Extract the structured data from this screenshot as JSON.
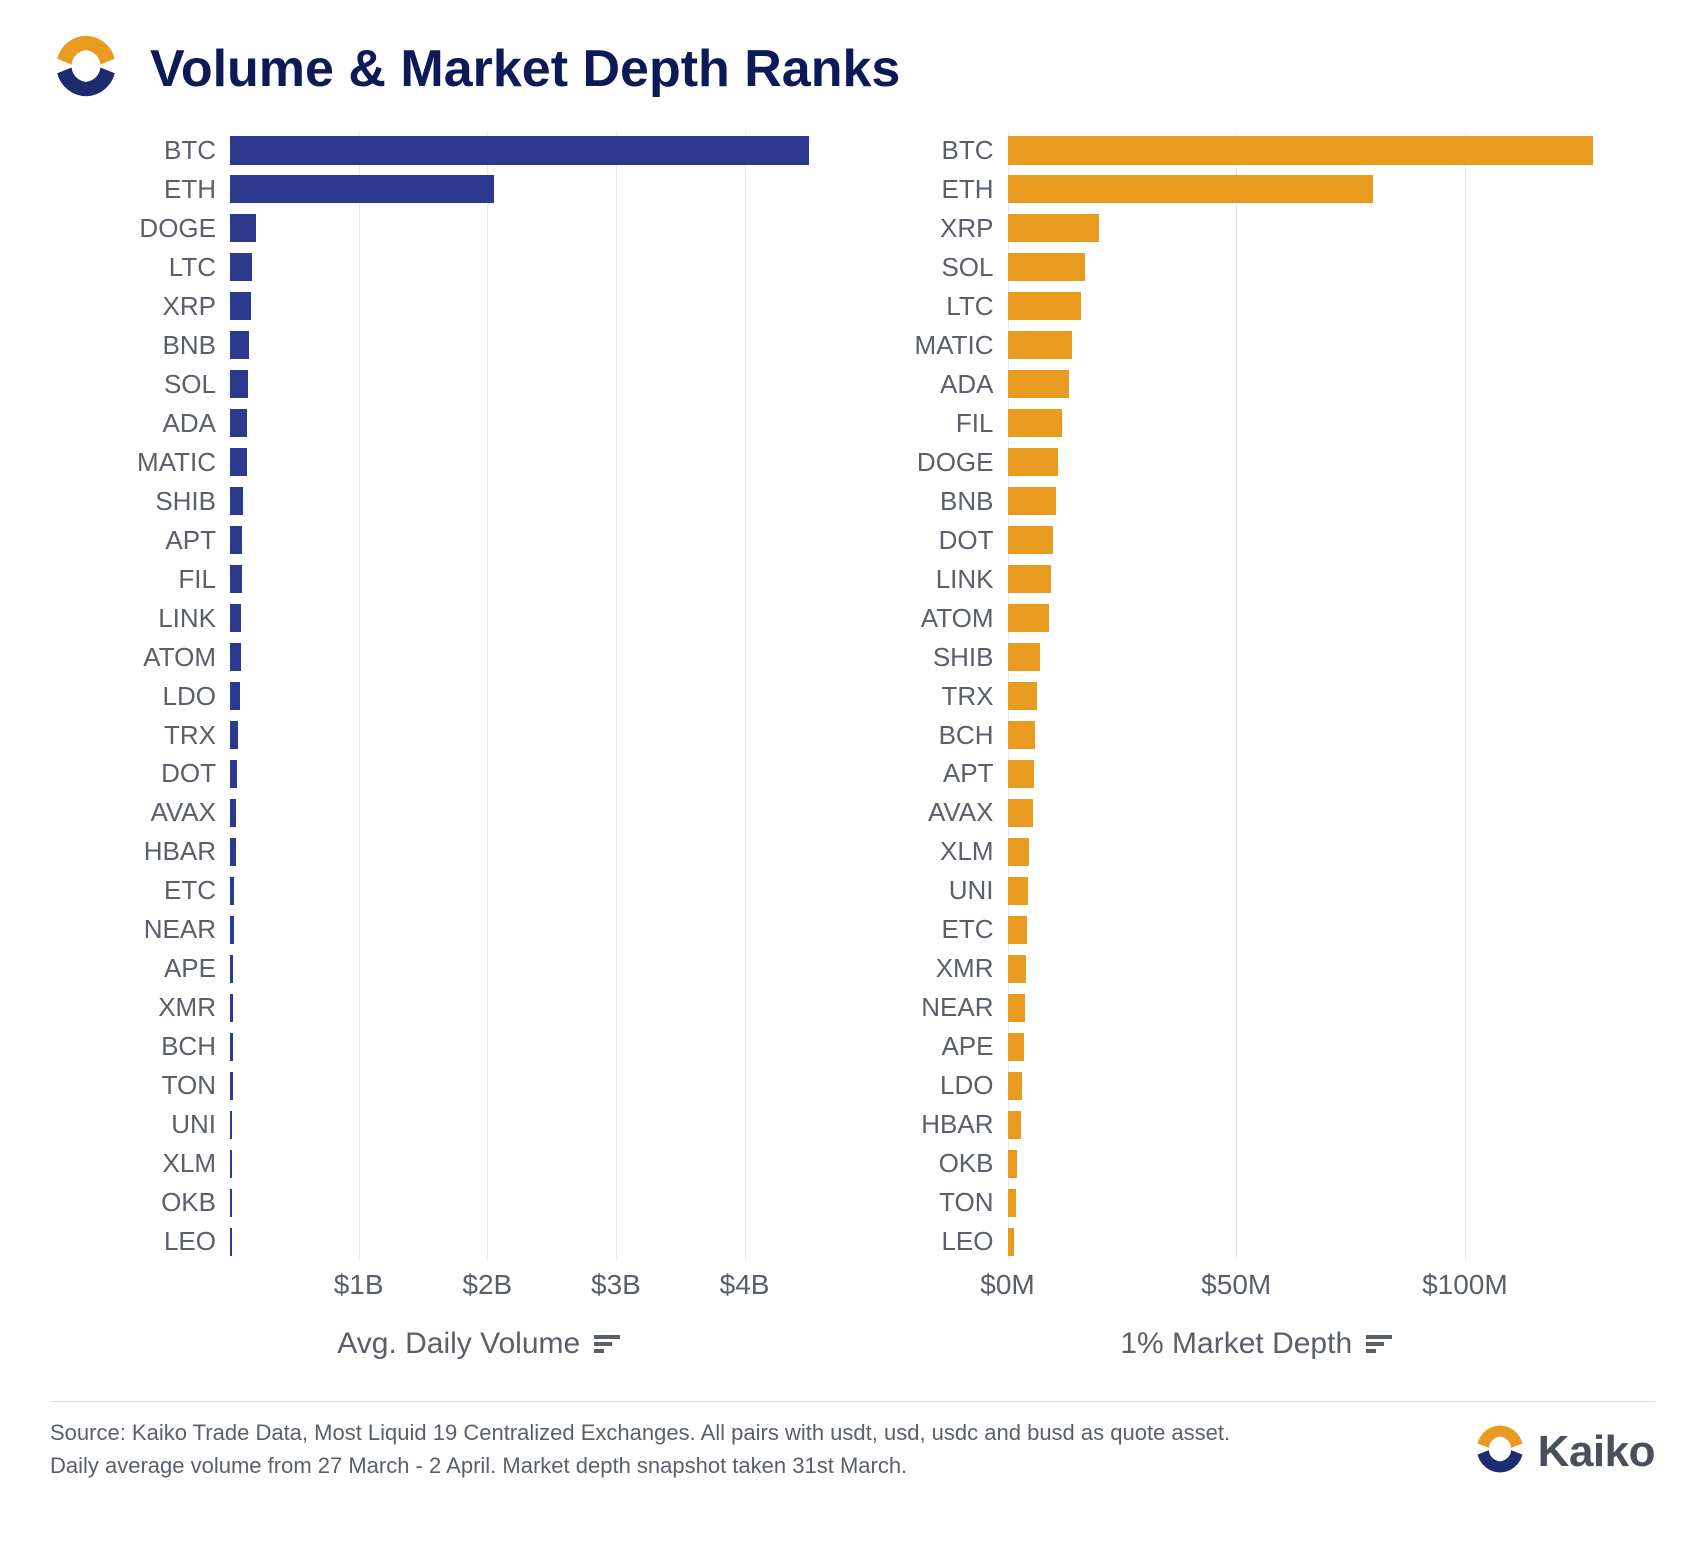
{
  "title": "Volume & Market Depth Ranks",
  "brand_name": "Kaiko",
  "logo_colors": {
    "top": "#e99b1f",
    "bottom": "#1e2b6e"
  },
  "footer_source_line1": "Source: Kaiko Trade Data, Most Liquid 19 Centralized Exchanges. All pairs with usdt, usd, usdc and busd as quote asset.",
  "footer_source_line2": "Daily average volume from 27 March - 2 April. Market depth snapshot taken 31st March.",
  "chart_left": {
    "type": "bar-horizontal",
    "axis_label": "Avg. Daily Volume",
    "bar_color": "#2b3a8f",
    "grid_color": "#e8e8ea",
    "text_color": "#5a5f6a",
    "label_fontsize": 26,
    "axis_label_fontsize": 30,
    "tick_fontsize": 28,
    "x_min": 0,
    "x_max": 4800000000,
    "x_ticks": [
      {
        "value": 1000000000,
        "label": "$1B"
      },
      {
        "value": 2000000000,
        "label": "$2B"
      },
      {
        "value": 3000000000,
        "label": "$3B"
      },
      {
        "value": 4000000000,
        "label": "$4B"
      }
    ],
    "rows": [
      {
        "label": "BTC",
        "value": 4500000000
      },
      {
        "label": "ETH",
        "value": 2050000000
      },
      {
        "label": "DOGE",
        "value": 200000000
      },
      {
        "label": "LTC",
        "value": 170000000
      },
      {
        "label": "XRP",
        "value": 160000000
      },
      {
        "label": "BNB",
        "value": 150000000
      },
      {
        "label": "SOL",
        "value": 140000000
      },
      {
        "label": "ADA",
        "value": 130000000
      },
      {
        "label": "MATIC",
        "value": 130000000
      },
      {
        "label": "SHIB",
        "value": 100000000
      },
      {
        "label": "APT",
        "value": 95000000
      },
      {
        "label": "FIL",
        "value": 90000000
      },
      {
        "label": "LINK",
        "value": 85000000
      },
      {
        "label": "ATOM",
        "value": 85000000
      },
      {
        "label": "LDO",
        "value": 80000000
      },
      {
        "label": "TRX",
        "value": 60000000
      },
      {
        "label": "DOT",
        "value": 55000000
      },
      {
        "label": "AVAX",
        "value": 50000000
      },
      {
        "label": "HBAR",
        "value": 45000000
      },
      {
        "label": "ETC",
        "value": 30000000
      },
      {
        "label": "NEAR",
        "value": 28000000
      },
      {
        "label": "APE",
        "value": 26000000
      },
      {
        "label": "XMR",
        "value": 24000000
      },
      {
        "label": "BCH",
        "value": 22000000
      },
      {
        "label": "TON",
        "value": 20000000
      },
      {
        "label": "UNI",
        "value": 18000000
      },
      {
        "label": "XLM",
        "value": 16000000
      },
      {
        "label": "OKB",
        "value": 14000000
      },
      {
        "label": "LEO",
        "value": 12000000
      }
    ]
  },
  "chart_right": {
    "type": "bar-horizontal",
    "axis_label": "1% Market Depth",
    "bar_color": "#e99b1f",
    "grid_color": "#e8e8ea",
    "text_color": "#5a5f6a",
    "label_fontsize": 26,
    "axis_label_fontsize": 30,
    "tick_fontsize": 28,
    "x_min": 0,
    "x_max": 135000000,
    "x_ticks": [
      {
        "value": 0,
        "label": "$0M"
      },
      {
        "value": 50000000,
        "label": "$50M"
      },
      {
        "value": 100000000,
        "label": "$100M"
      }
    ],
    "rows": [
      {
        "label": "BTC",
        "value": 128000000
      },
      {
        "label": "ETH",
        "value": 80000000
      },
      {
        "label": "XRP",
        "value": 20000000
      },
      {
        "label": "SOL",
        "value": 17000000
      },
      {
        "label": "LTC",
        "value": 16000000
      },
      {
        "label": "MATIC",
        "value": 14000000
      },
      {
        "label": "ADA",
        "value": 13500000
      },
      {
        "label": "FIL",
        "value": 12000000
      },
      {
        "label": "DOGE",
        "value": 11000000
      },
      {
        "label": "BNB",
        "value": 10500000
      },
      {
        "label": "DOT",
        "value": 10000000
      },
      {
        "label": "LINK",
        "value": 9500000
      },
      {
        "label": "ATOM",
        "value": 9000000
      },
      {
        "label": "SHIB",
        "value": 7000000
      },
      {
        "label": "TRX",
        "value": 6500000
      },
      {
        "label": "BCH",
        "value": 6000000
      },
      {
        "label": "APT",
        "value": 5800000
      },
      {
        "label": "AVAX",
        "value": 5500000
      },
      {
        "label": "XLM",
        "value": 4800000
      },
      {
        "label": "UNI",
        "value": 4500000
      },
      {
        "label": "ETC",
        "value": 4200000
      },
      {
        "label": "XMR",
        "value": 4000000
      },
      {
        "label": "NEAR",
        "value": 3800000
      },
      {
        "label": "APE",
        "value": 3500000
      },
      {
        "label": "LDO",
        "value": 3200000
      },
      {
        "label": "HBAR",
        "value": 3000000
      },
      {
        "label": "OKB",
        "value": 2000000
      },
      {
        "label": "TON",
        "value": 1800000
      },
      {
        "label": "LEO",
        "value": 1500000
      }
    ]
  }
}
